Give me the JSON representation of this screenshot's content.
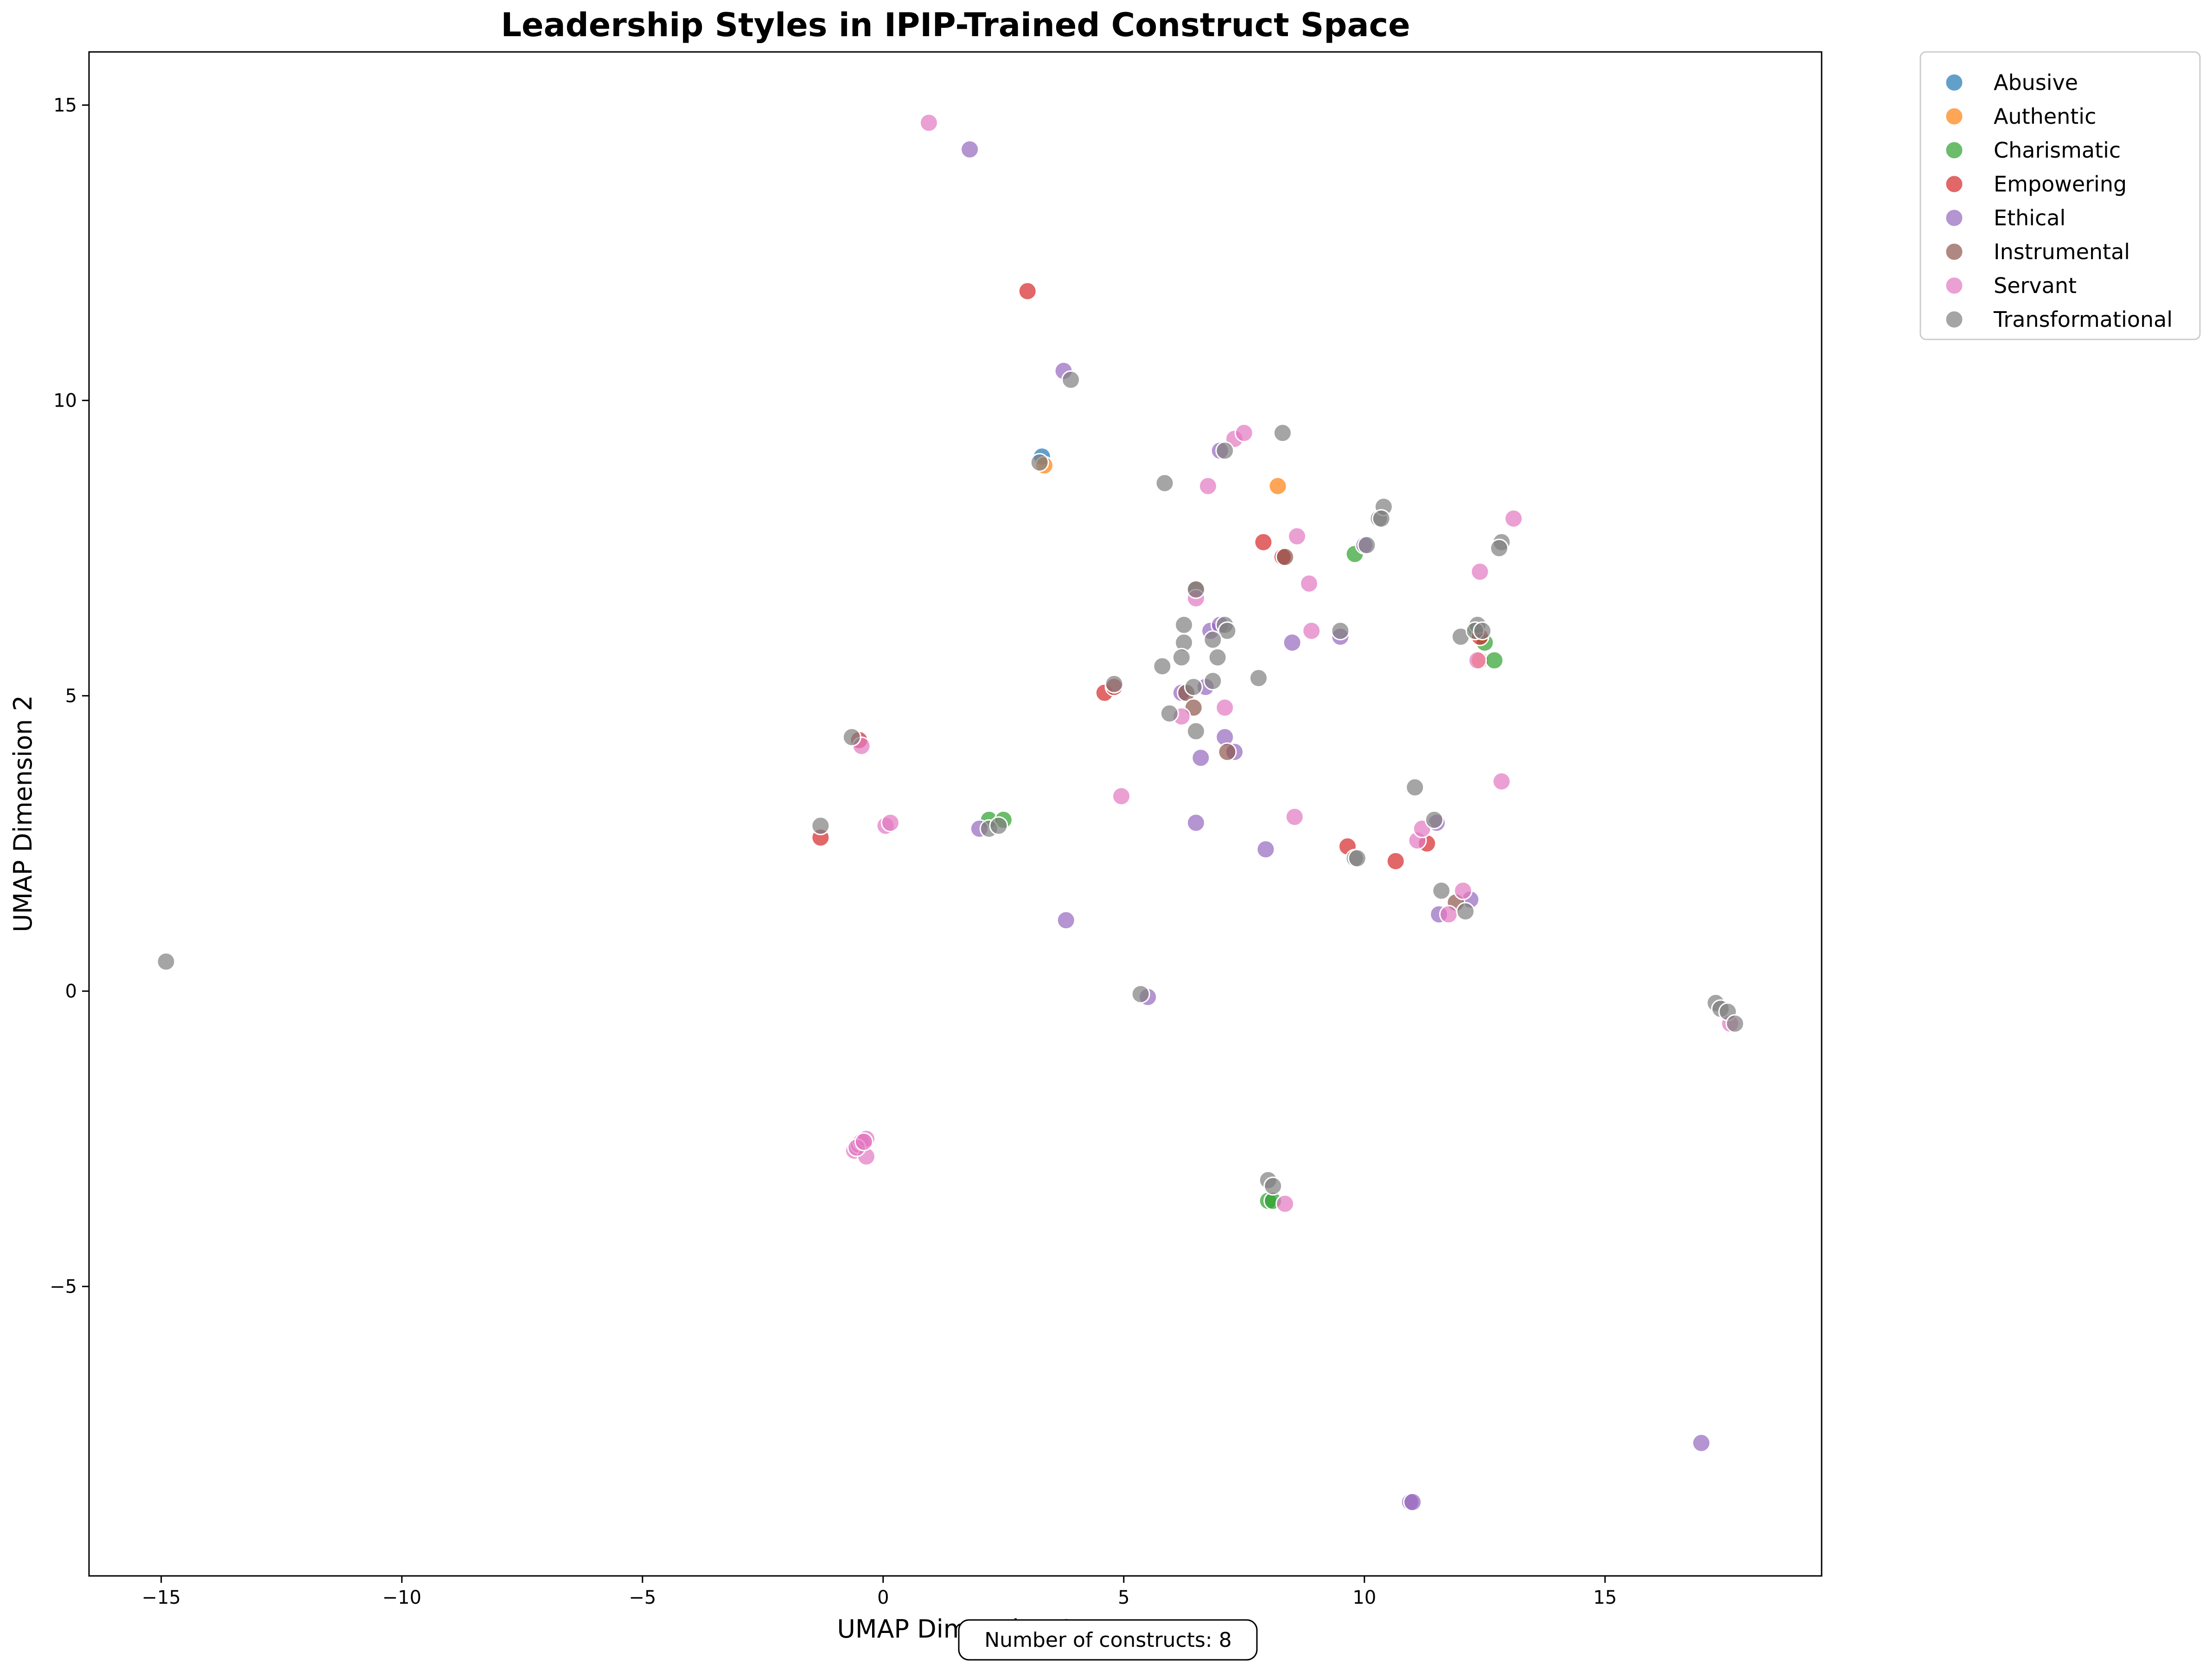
{
  "chart_data": {
    "type": "scatter",
    "title": "Leadership Styles in IPIP-Trained Construct Space",
    "xlabel": "UMAP Dimension 1",
    "ylabel": "UMAP Dimension 2",
    "xlim": [
      -16.5,
      19.5
    ],
    "ylim": [
      -9.9,
      15.9
    ],
    "xticks": [
      -15,
      -10,
      -5,
      0,
      5,
      10,
      15
    ],
    "yticks": [
      -5,
      0,
      5,
      10,
      15
    ],
    "xtick_labels": [
      "−15",
      "−10",
      "−5",
      "0",
      "5",
      "10",
      "15"
    ],
    "ytick_labels": [
      "−5",
      "0",
      "5",
      "10",
      "15"
    ],
    "grid": false,
    "legend_position": "outside-top-right",
    "annotation": "Number of constructs: 8",
    "series": [
      {
        "name": "Abusive",
        "color": "#1f77b4",
        "points": [
          [
            3.3,
            9.05
          ]
        ]
      },
      {
        "name": "Authentic",
        "color": "#ff7f0e",
        "points": [
          [
            3.35,
            8.9
          ],
          [
            8.2,
            8.55
          ],
          [
            12.4,
            5.6
          ]
        ]
      },
      {
        "name": "Charismatic",
        "color": "#2ca02c",
        "points": [
          [
            2.2,
            2.9
          ],
          [
            2.5,
            2.9
          ],
          [
            9.8,
            7.4
          ],
          [
            12.5,
            5.9
          ],
          [
            12.7,
            5.6
          ],
          [
            12.3,
            6.1
          ],
          [
            8.0,
            -3.55
          ],
          [
            8.1,
            -3.55
          ]
        ]
      },
      {
        "name": "Empowering",
        "color": "#d62728",
        "points": [
          [
            3.0,
            11.85
          ],
          [
            -1.3,
            2.6
          ],
          [
            4.6,
            5.05
          ],
          [
            4.8,
            5.15
          ],
          [
            7.9,
            7.6
          ],
          [
            8.3,
            7.35
          ],
          [
            9.65,
            2.45
          ],
          [
            10.65,
            2.2
          ],
          [
            11.3,
            2.5
          ],
          [
            12.4,
            6.0
          ],
          [
            -0.5,
            4.25
          ]
        ]
      },
      {
        "name": "Ethical",
        "color": "#9467bd",
        "points": [
          [
            1.8,
            14.25
          ],
          [
            3.75,
            10.5
          ],
          [
            7.0,
            9.15
          ],
          [
            6.8,
            6.1
          ],
          [
            7.0,
            6.2
          ],
          [
            8.5,
            5.9
          ],
          [
            9.5,
            6.0
          ],
          [
            6.2,
            5.05
          ],
          [
            6.7,
            5.15
          ],
          [
            7.1,
            4.3
          ],
          [
            7.3,
            4.05
          ],
          [
            6.6,
            3.95
          ],
          [
            6.5,
            2.85
          ],
          [
            7.95,
            2.4
          ],
          [
            2.0,
            2.75
          ],
          [
            3.8,
            1.2
          ],
          [
            5.5,
            -0.1
          ],
          [
            11.55,
            1.3
          ],
          [
            11.5,
            2.85
          ],
          [
            10.0,
            7.55
          ],
          [
            17.0,
            -7.65
          ],
          [
            10.95,
            -8.65
          ],
          [
            11.0,
            -8.65
          ],
          [
            12.2,
            1.55
          ]
        ]
      },
      {
        "name": "Instrumental",
        "color": "#8c564b",
        "points": [
          [
            6.5,
            6.8
          ],
          [
            8.35,
            7.35
          ],
          [
            6.3,
            5.05
          ],
          [
            6.45,
            4.8
          ],
          [
            7.15,
            4.05
          ],
          [
            11.9,
            1.5
          ]
        ]
      },
      {
        "name": "Servant",
        "color": "#e377c2",
        "points": [
          [
            0.95,
            14.7
          ],
          [
            7.3,
            9.35
          ],
          [
            7.5,
            9.45
          ],
          [
            6.75,
            8.55
          ],
          [
            8.6,
            7.7
          ],
          [
            8.85,
            6.9
          ],
          [
            8.9,
            6.1
          ],
          [
            6.5,
            6.65
          ],
          [
            7.1,
            4.8
          ],
          [
            6.2,
            4.65
          ],
          [
            4.95,
            3.3
          ],
          [
            8.55,
            2.95
          ],
          [
            12.4,
            7.1
          ],
          [
            13.1,
            8.0
          ],
          [
            12.85,
            3.55
          ],
          [
            12.35,
            5.6
          ],
          [
            11.1,
            2.55
          ],
          [
            11.2,
            2.75
          ],
          [
            12.05,
            1.7
          ],
          [
            11.75,
            1.3
          ],
          [
            0.05,
            2.8
          ],
          [
            0.15,
            2.85
          ],
          [
            -0.45,
            4.15
          ],
          [
            -0.6,
            -2.7
          ],
          [
            -0.5,
            -2.6
          ],
          [
            -0.45,
            -2.55
          ],
          [
            -0.35,
            -2.5
          ],
          [
            -0.35,
            -2.8
          ],
          [
            -0.55,
            -2.65
          ],
          [
            8.35,
            -3.6
          ],
          [
            17.6,
            -0.55
          ],
          [
            -0.4,
            -2.55
          ]
        ]
      },
      {
        "name": "Transformational",
        "color": "#7f7f7f",
        "points": [
          [
            -14.9,
            0.5
          ],
          [
            -0.65,
            4.3
          ],
          [
            -1.3,
            2.8
          ],
          [
            2.2,
            2.75
          ],
          [
            2.4,
            2.8
          ],
          [
            3.25,
            8.95
          ],
          [
            3.9,
            10.35
          ],
          [
            5.85,
            8.6
          ],
          [
            8.3,
            9.45
          ],
          [
            7.1,
            9.15
          ],
          [
            10.3,
            8.0
          ],
          [
            10.4,
            8.2
          ],
          [
            10.35,
            8.0
          ],
          [
            10.05,
            7.55
          ],
          [
            12.85,
            7.6
          ],
          [
            12.8,
            7.5
          ],
          [
            6.5,
            6.8
          ],
          [
            6.25,
            6.2
          ],
          [
            7.1,
            6.2
          ],
          [
            7.15,
            6.1
          ],
          [
            6.85,
            5.95
          ],
          [
            6.25,
            5.9
          ],
          [
            5.8,
            5.5
          ],
          [
            6.2,
            5.65
          ],
          [
            6.95,
            5.65
          ],
          [
            7.8,
            5.3
          ],
          [
            6.85,
            5.25
          ],
          [
            6.45,
            5.15
          ],
          [
            4.8,
            5.2
          ],
          [
            5.95,
            4.7
          ],
          [
            6.5,
            4.4
          ],
          [
            9.5,
            6.1
          ],
          [
            12.0,
            6.0
          ],
          [
            12.35,
            6.2
          ],
          [
            12.3,
            6.1
          ],
          [
            12.45,
            6.1
          ],
          [
            11.05,
            3.45
          ],
          [
            11.45,
            2.9
          ],
          [
            9.8,
            2.25
          ],
          [
            9.85,
            2.25
          ],
          [
            11.6,
            1.7
          ],
          [
            12.1,
            1.35
          ],
          [
            5.35,
            -0.05
          ],
          [
            17.3,
            -0.2
          ],
          [
            17.4,
            -0.3
          ],
          [
            17.55,
            -0.35
          ],
          [
            17.7,
            -0.55
          ],
          [
            8.0,
            -3.2
          ],
          [
            8.1,
            -3.3
          ]
        ]
      }
    ]
  }
}
